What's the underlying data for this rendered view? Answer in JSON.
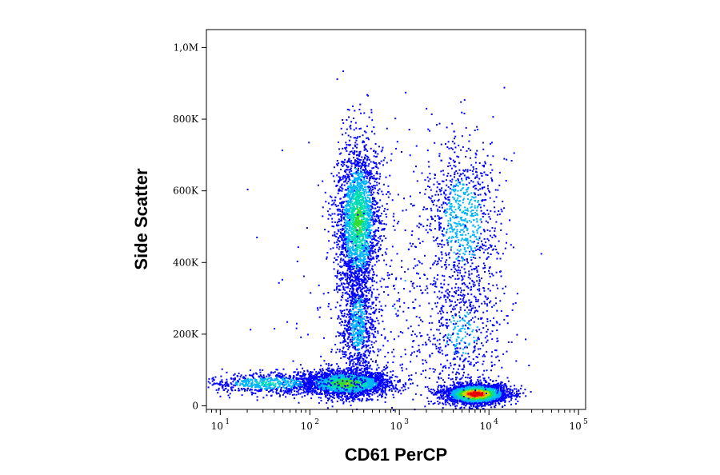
{
  "chart_data": {
    "type": "scatter",
    "title": "",
    "xlabel": "CD61 PerCP",
    "ylabel": "Side Scatter",
    "x_scale": "log",
    "xlim": [
      7,
      120000
    ],
    "ylim": [
      -10000,
      1050000
    ],
    "x_ticks": [
      {
        "value": 10,
        "base": "10",
        "exp": "1"
      },
      {
        "value": 100,
        "base": "10",
        "exp": "2"
      },
      {
        "value": 1000,
        "base": "10",
        "exp": "3"
      },
      {
        "value": 10000,
        "base": "10",
        "exp": "4"
      },
      {
        "value": 100000,
        "base": "10",
        "exp": "5"
      }
    ],
    "y_ticks": [
      {
        "value": 0,
        "label": "0"
      },
      {
        "value": 200000,
        "label": "200K"
      },
      {
        "value": 400000,
        "label": "400K"
      },
      {
        "value": 600000,
        "label": "600K"
      },
      {
        "value": 800000,
        "label": "800K"
      },
      {
        "value": 1000000,
        "label": "1,0M"
      }
    ],
    "grid": false,
    "colormap": [
      "#0000ff",
      "#00b4ff",
      "#00dcb4",
      "#32dc32",
      "#c8dc00",
      "#ff8c00",
      "#e60000"
    ],
    "populations": [
      {
        "x_center": 250,
        "x_spread_decades": 0.25,
        "y_center": 65000,
        "y_spread": 18000,
        "count": 2600,
        "density_peak": 0.55
      },
      {
        "x_center": 35,
        "x_spread_decades": 0.35,
        "y_center": 65000,
        "y_spread": 15000,
        "count": 700,
        "density_peak": 0.3
      },
      {
        "x_center": 340,
        "x_spread_decades": 0.12,
        "y_center": 520000,
        "y_spread": 110000,
        "count": 2400,
        "density_peak": 0.45
      },
      {
        "x_center": 340,
        "x_spread_decades": 0.1,
        "y_center": 230000,
        "y_spread": 90000,
        "count": 900,
        "density_peak": 0.2
      },
      {
        "x_center": 7000,
        "x_spread_decades": 0.18,
        "y_center": 35000,
        "y_spread": 14000,
        "count": 2600,
        "density_peak": 1.0
      },
      {
        "x_center": 5000,
        "x_spread_decades": 0.22,
        "y_center": 520000,
        "y_spread": 120000,
        "count": 900,
        "density_peak": 0.25
      },
      {
        "x_center": 5000,
        "x_spread_decades": 0.25,
        "y_center": 200000,
        "y_spread": 100000,
        "count": 500,
        "density_peak": 0.15
      },
      {
        "x_center": 1000,
        "x_spread_decades": 0.6,
        "y_center": 300000,
        "y_spread": 220000,
        "count": 450,
        "density_peak": 0.1
      }
    ]
  }
}
